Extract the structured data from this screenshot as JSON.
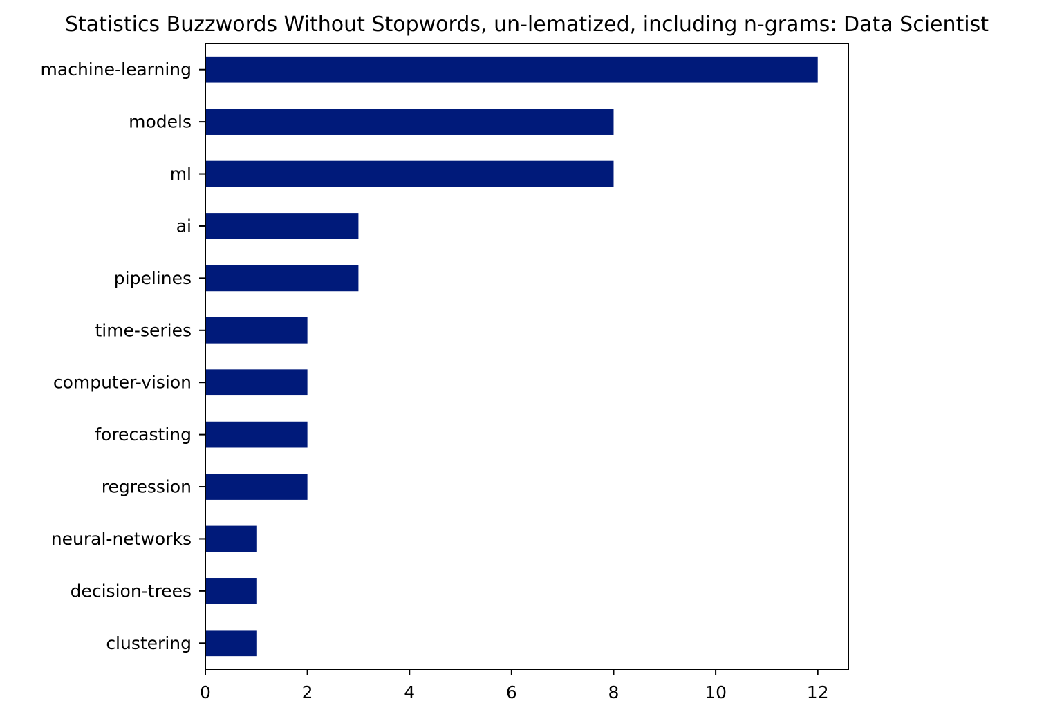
{
  "chart_data": {
    "type": "bar",
    "orientation": "horizontal",
    "title": "Statistics Buzzwords Without Stopwords, un-lematized, including n-grams: Data Scientist",
    "xlabel": "",
    "ylabel": "",
    "categories": [
      "machine-learning",
      "models",
      "ml",
      "ai",
      "pipelines",
      "time-series",
      "computer-vision",
      "forecasting",
      "regression",
      "neural-networks",
      "decision-trees",
      "clustering"
    ],
    "values": [
      12,
      8,
      8,
      3,
      3,
      2,
      2,
      2,
      2,
      1,
      1,
      1
    ],
    "xlim": [
      0,
      12.6
    ],
    "xticks": [
      0,
      2,
      4,
      6,
      8,
      10,
      12
    ],
    "grid": false,
    "legend": "none",
    "bar_color": "#001a7a"
  }
}
